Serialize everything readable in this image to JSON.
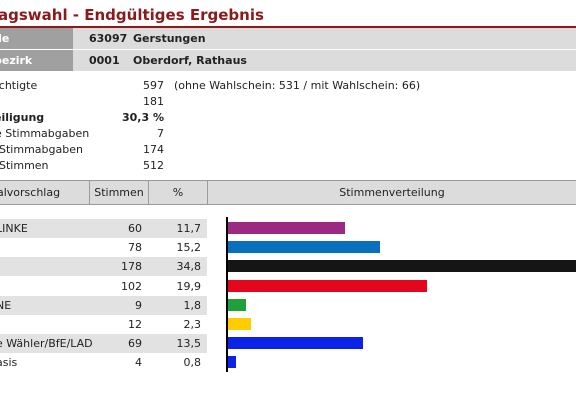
{
  "header": {
    "title": "agswahl - Endgültiges Ergebnis"
  },
  "location": [
    {
      "label": "de",
      "code": "63097",
      "name": "Gerstungen"
    },
    {
      "label": "bezirk",
      "code": "0001",
      "name": "Oberdorf, Rathaus"
    }
  ],
  "stats": [
    {
      "label": "echtigte",
      "value": "597",
      "note": "(ohne Wahlschein: 531 / mit Wahlschein: 66)",
      "bold": false
    },
    {
      "label": "",
      "value": "181",
      "note": "",
      "bold": false
    },
    {
      "label": "eiligung",
      "value": "30,3 %",
      "note": "",
      "bold": true
    },
    {
      "label": "e Stimmabgaben",
      "value": "7",
      "note": "",
      "bold": false
    },
    {
      "label": "Stimmabgaben",
      "value": "174",
      "note": "",
      "bold": false
    },
    {
      "label": "Stimmen",
      "value": "512",
      "note": "",
      "bold": false
    }
  ],
  "table": {
    "columns": [
      "alvorschlag",
      "Stimmen",
      "%",
      "Stimmenverteilung"
    ],
    "rows": [
      {
        "name": "LINKE",
        "votes": 60,
        "votes_text": "60",
        "pct_text": "11,7",
        "color": "#9b2a83",
        "shade": true
      },
      {
        "name": "",
        "votes": 78,
        "votes_text": "78",
        "pct_text": "15,2",
        "color": "#0a6fbd",
        "shade": false
      },
      {
        "name": "",
        "votes": 178,
        "votes_text": "178",
        "pct_text": "34,8",
        "color": "#151515",
        "shade": true
      },
      {
        "name": "",
        "votes": 102,
        "votes_text": "102",
        "pct_text": "19,9",
        "color": "#e3061c",
        "shade": false
      },
      {
        "name": "NE",
        "votes": 9,
        "votes_text": "9",
        "pct_text": "1,8",
        "color": "#1ea03a",
        "shade": true
      },
      {
        "name": "",
        "votes": 12,
        "votes_text": "12",
        "pct_text": "2,3",
        "color": "#ffcc00",
        "shade": false
      },
      {
        "name": "e Wähler/BfE/LAD",
        "votes": 69,
        "votes_text": "69",
        "pct_text": "13,5",
        "color": "#0a23e6",
        "shade": true
      },
      {
        "name": "asis",
        "votes": 4,
        "votes_text": "4",
        "pct_text": "0,8",
        "color": "#0a23e6",
        "shade": false
      }
    ]
  },
  "chart_data": {
    "type": "bar",
    "categories": [
      "LINKE",
      "",
      "",
      "",
      "NE",
      "",
      "e Wähler/BfE/LAD",
      "asis"
    ],
    "values": [
      60,
      78,
      178,
      102,
      9,
      12,
      69,
      4
    ],
    "xlabel": "",
    "ylabel": "",
    "xlim": [
      0,
      178
    ],
    "grid": false
  }
}
